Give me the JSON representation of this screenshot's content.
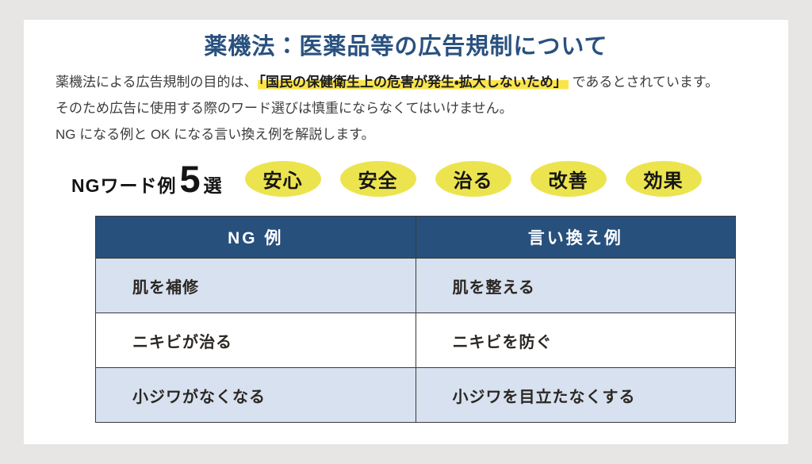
{
  "page": {
    "title": "薬機法：医薬品等の広告規制について"
  },
  "intro": {
    "line1_prefix": "薬機法による広告規制の目的は、",
    "line1_highlight": "「国民の保健衛生上の危害が発生・拡大しないため」",
    "line1_suffix": " であるとされています。",
    "line2": "そのため広告に使用する際のワード選びは慎重にならなくてはいけません。",
    "line3": "NG になる例と OK になる言い換え例を解説します。"
  },
  "ng_words": {
    "label_prefix": "NGワード例",
    "count": "5",
    "label_suffix": "選",
    "badges": [
      "安心",
      "安全",
      "治る",
      "改善",
      "効果"
    ]
  },
  "table": {
    "headers": [
      "NG 例",
      "言い換え例"
    ],
    "rows": [
      [
        "肌を補修",
        "肌を整える"
      ],
      [
        "ニキビが治る",
        "ニキビを防ぐ"
      ],
      [
        "小ジワがなくなる",
        "小ジワを目立たなくする"
      ]
    ]
  },
  "colors": {
    "accent_blue": "#29517f",
    "table_header_blue": "#27507d",
    "row_light_blue": "#d7e1ef",
    "badge_yellow": "#ece44f",
    "highlight_yellow": "#fbe44a",
    "page_background_gray": "#e7e6e4"
  }
}
